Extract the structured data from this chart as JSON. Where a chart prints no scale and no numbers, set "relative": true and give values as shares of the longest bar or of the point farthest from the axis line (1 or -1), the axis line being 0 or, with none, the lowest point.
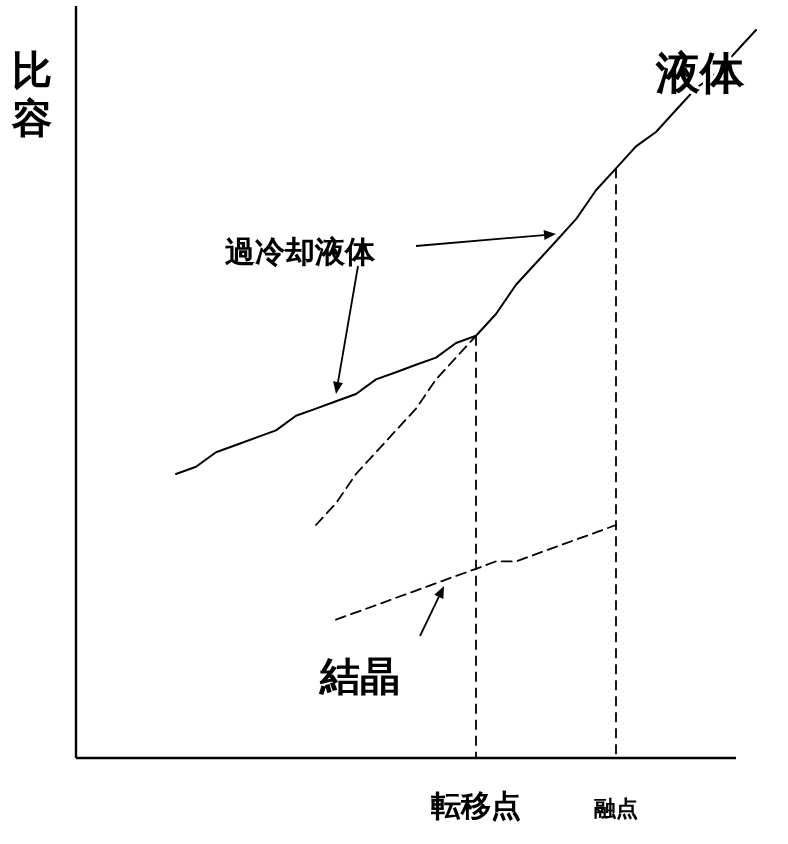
{
  "chart_data": {
    "type": "line",
    "relative": true,
    "ylabel": "比容",
    "categories": [
      null,
      null,
      null,
      null,
      null,
      null,
      null,
      null,
      null,
      null,
      null,
      null,
      null,
      null,
      null,
      null,
      null,
      null,
      null,
      null,
      "転移点",
      null,
      null,
      null,
      null,
      null,
      null,
      "融点",
      null,
      null,
      null,
      null,
      null,
      null,
      null
    ],
    "series": [
      {
        "color": "#000000",
        "line_style": "solid",
        "values": [
          null,
          null,
          null,
          null,
          null,
          0.39,
          0.4,
          0.42,
          0.43,
          0.44,
          0.45,
          0.47,
          0.48,
          0.49,
          0.5,
          0.52,
          0.53,
          0.54,
          0.55,
          0.57,
          0.58,
          0.61,
          0.65,
          0.68,
          0.71,
          0.74,
          0.78,
          0.81,
          0.84,
          0.86,
          0.89,
          0.92,
          0.94,
          0.97,
          1.0
        ]
      },
      {
        "color": "#000000",
        "line_style": "dashed",
        "values": [
          null,
          null,
          null,
          null,
          null,
          null,
          null,
          null,
          null,
          null,
          null,
          null,
          0.32,
          0.35,
          0.39,
          0.42,
          0.45,
          0.48,
          0.52,
          0.55,
          0.58,
          null,
          null,
          null,
          null,
          null,
          null,
          null,
          null,
          null,
          null,
          null,
          null,
          null,
          null
        ]
      },
      {
        "color": "#000000",
        "line_style": "dashed",
        "values": [
          null,
          null,
          null,
          null,
          null,
          null,
          null,
          null,
          null,
          null,
          null,
          null,
          null,
          0.19,
          0.2,
          0.21,
          0.22,
          0.23,
          0.24,
          0.25,
          0.26,
          0.27,
          0.27,
          0.28,
          0.29,
          0.3,
          0.31,
          0.32,
          null,
          null,
          null,
          null,
          null,
          null,
          null
        ]
      }
    ],
    "ref_lines": [
      {
        "axis": "x",
        "value": "転移点",
        "line_style": "dashed",
        "color": "#000000"
      },
      {
        "axis": "x",
        "value": "融点",
        "line_style": "dashed",
        "color": "#000000"
      }
    ],
    "annotations": [
      "液体",
      "過冷却液体",
      "結晶"
    ]
  }
}
